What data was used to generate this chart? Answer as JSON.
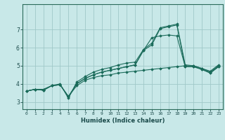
{
  "xlabel": "Humidex (Indice chaleur)",
  "ylabel": "",
  "background_color": "#c8e8e8",
  "grid_color": "#a0c8c8",
  "line_color": "#1a6b5a",
  "xlim": [
    -0.5,
    23.5
  ],
  "ylim": [
    2.6,
    8.4
  ],
  "xticks": [
    0,
    1,
    2,
    3,
    4,
    5,
    6,
    7,
    8,
    9,
    10,
    11,
    12,
    13,
    14,
    15,
    16,
    17,
    18,
    19,
    20,
    21,
    22,
    23
  ],
  "yticks": [
    3,
    4,
    5,
    6,
    7
  ],
  "series": [
    [
      3.6,
      3.7,
      3.7,
      3.9,
      4.0,
      3.2,
      4.1,
      4.4,
      4.65,
      4.8,
      4.9,
      5.05,
      5.15,
      5.2,
      5.9,
      6.25,
      7.1,
      7.2,
      7.3,
      5.05,
      5.0,
      4.85,
      4.7,
      5.05
    ],
    [
      3.6,
      3.7,
      3.65,
      3.9,
      3.95,
      3.3,
      3.9,
      4.2,
      4.35,
      4.45,
      4.5,
      4.6,
      4.65,
      4.7,
      4.75,
      4.8,
      4.85,
      4.9,
      4.95,
      5.0,
      5.0,
      4.85,
      4.65,
      5.0
    ],
    [
      3.6,
      3.7,
      3.65,
      3.9,
      3.95,
      3.3,
      4.0,
      4.3,
      4.5,
      4.65,
      4.75,
      4.85,
      4.95,
      5.05,
      5.85,
      6.15,
      7.05,
      7.15,
      7.25,
      4.95,
      4.95,
      4.8,
      4.6,
      4.95
    ],
    [
      3.6,
      3.7,
      3.65,
      3.9,
      3.95,
      3.3,
      4.0,
      4.3,
      4.5,
      4.65,
      4.75,
      4.85,
      4.95,
      5.05,
      5.85,
      6.55,
      6.65,
      6.7,
      6.65,
      4.95,
      4.95,
      4.8,
      4.6,
      4.95
    ]
  ]
}
